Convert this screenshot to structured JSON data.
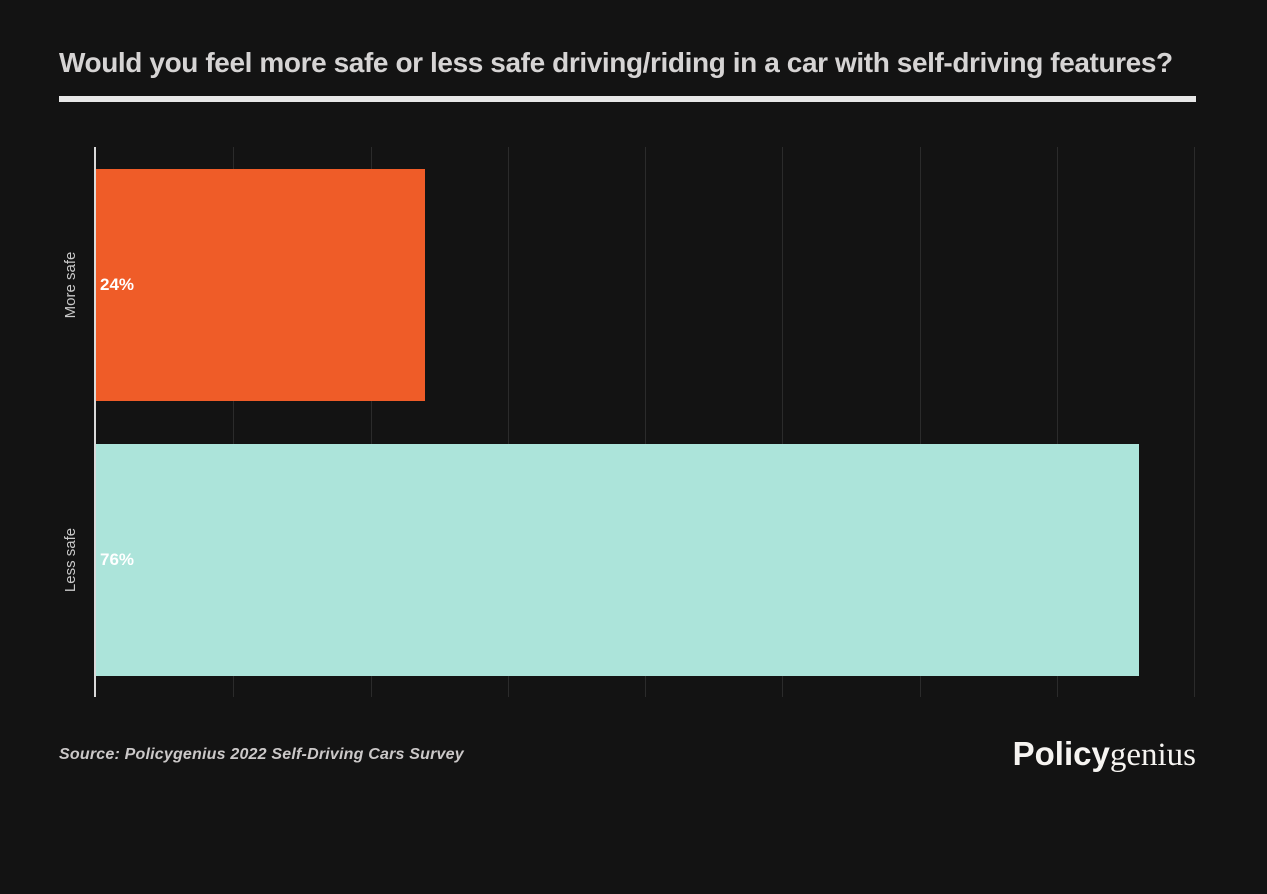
{
  "header": {
    "title": "Would you feel more safe or less safe driving/riding in a car with self-driving features?"
  },
  "chart_data": {
    "type": "bar",
    "orientation": "horizontal",
    "title": "Would you feel more safe or less safe driving/riding in a car with self-driving features?",
    "categories": [
      "More safe",
      "Less safe"
    ],
    "values": [
      24,
      76
    ],
    "value_labels": [
      "24%",
      "76%"
    ],
    "bar_colors": [
      "#ef5c28",
      "#ace4da"
    ],
    "xlabel": "",
    "ylabel": "",
    "xlim": [
      0,
      80
    ],
    "gridlines": [
      10,
      20,
      30,
      40,
      50,
      60,
      70,
      80
    ],
    "grid": true,
    "legend": "none"
  },
  "footer": {
    "source": "Source: Policygenius 2022 Self-Driving Cars Survey",
    "logo_bold": "Policy",
    "logo_serif": "genius"
  },
  "colors": {
    "background": "#131313",
    "title_text": "#d6d4d4",
    "divider": "#e7e7e7",
    "axis_line": "#d9d9d9",
    "gridline": "#2b2b2b",
    "bar_more_safe": "#ef5c28",
    "bar_less_safe": "#ace4da",
    "value_label": "#ffffff",
    "category_label": "#c9c9c9",
    "source_text": "#cbc8c8",
    "logo_text": "#f6f4f1"
  }
}
